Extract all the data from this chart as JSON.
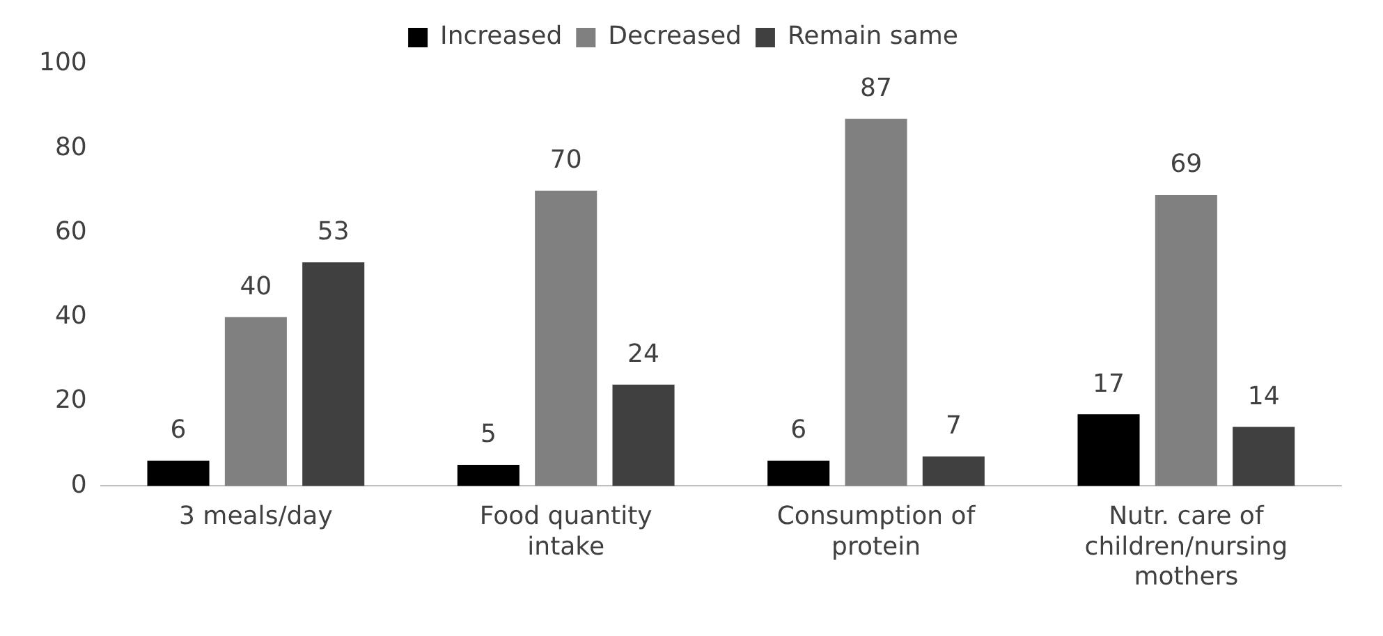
{
  "chart_data": {
    "type": "bar",
    "categories": [
      "3 meals/day",
      "Food quantity intake",
      "Consumption of protein",
      "Nutr. care of children/nursing mothers"
    ],
    "series": [
      {
        "name": "Increased",
        "color": "#000000",
        "values": [
          6,
          5,
          6,
          17
        ]
      },
      {
        "name": "Decreased",
        "color": "#808080",
        "values": [
          40,
          70,
          87,
          69
        ]
      },
      {
        "name": "Remain same",
        "color": "#404040",
        "values": [
          53,
          24,
          7,
          14
        ]
      }
    ],
    "ylim": [
      0,
      100
    ],
    "yticks": [
      0,
      20,
      40,
      60,
      80,
      100
    ],
    "grid": false,
    "legend": "top",
    "data_labels": true
  }
}
